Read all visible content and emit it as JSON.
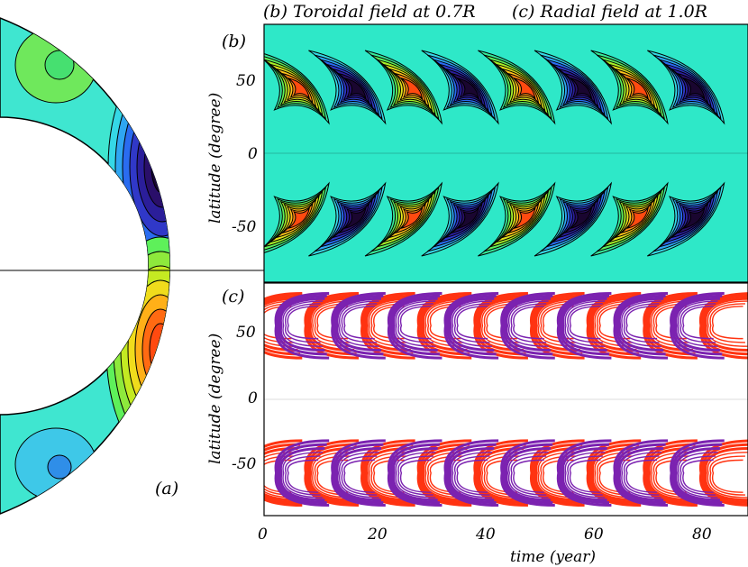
{
  "figure": {
    "title_b": "(b) Toroidal field at 0.7R",
    "title_c": "(c) Radial field at 1.0R",
    "panel_a_label": "(a)",
    "panel_b_label": "(b)",
    "panel_c_label": "(c)"
  },
  "colors": {
    "background_field": "#2ee8c8",
    "positive_contour": "#ff3311",
    "negative_contour": "#7b22b0",
    "shell_aqua": "#3fe6d0"
  },
  "chart_data": [
    {
      "type": "heatmap",
      "panel": "a",
      "title": "",
      "description_label": "(a)",
      "quantity": "meridional toroidal field, one hemisphere pair",
      "extrema": [
        {
          "sign": "negative",
          "latitude_deg": 35,
          "radius_fraction": 0.85
        },
        {
          "sign": "positive",
          "latitude_deg": -30,
          "radius_fraction": 0.85
        }
      ]
    },
    {
      "type": "heatmap",
      "panel": "b",
      "title": "(b) Toroidal field at 0.7R",
      "xlabel": "time (year)",
      "ylabel": "latitude (degree)",
      "xlim": [
        0,
        90
      ],
      "ylim": [
        -90,
        90
      ],
      "yticks": [
        50,
        0,
        -50
      ],
      "ytick_labels": [
        "50",
        "0",
        "-50"
      ],
      "cycle_period_years": 11,
      "wings": [
        {
          "t": 7,
          "sign": "positive"
        },
        {
          "t": 17.5,
          "sign": "negative"
        },
        {
          "t": 28,
          "sign": "positive"
        },
        {
          "t": 38.5,
          "sign": "negative"
        },
        {
          "t": 49,
          "sign": "positive"
        },
        {
          "t": 59.5,
          "sign": "negative"
        },
        {
          "t": 70,
          "sign": "positive"
        },
        {
          "t": 80.5,
          "sign": "negative"
        }
      ]
    },
    {
      "type": "line",
      "panel": "c",
      "title": "(c) Radial field at 1.0R",
      "xlabel": "time (year)",
      "ylabel": "latitude (degree)",
      "xlim": [
        0,
        90
      ],
      "ylim": [
        -90,
        90
      ],
      "x_ticks": [
        0,
        20,
        40,
        60,
        80
      ],
      "x_tick_labels": [
        "0",
        "20",
        "40",
        "60",
        "80"
      ],
      "yticks": [
        50,
        0,
        -50
      ],
      "ytick_labels": [
        "50",
        "0",
        "-50"
      ],
      "series": [
        {
          "name": "positive",
          "color": "#ff3311",
          "wing_times": [
            2,
            12.5,
            23,
            33.5,
            44,
            54.5,
            65,
            75.5,
            86
          ]
        },
        {
          "name": "negative",
          "color": "#7b22b0",
          "wing_times": [
            7,
            17.5,
            28,
            38.5,
            49,
            59.5,
            70,
            80.5
          ]
        }
      ]
    }
  ]
}
